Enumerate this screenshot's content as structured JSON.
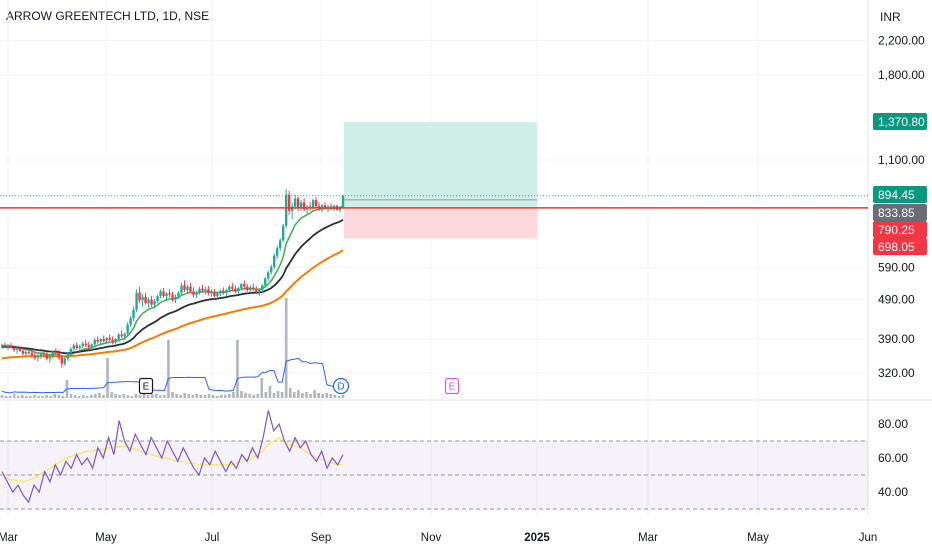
{
  "header": {
    "title": "ARROW GREENTECH LTD, 1D, NSE",
    "currency": "INR"
  },
  "colors": {
    "up": "#22ab94",
    "down": "#f23645",
    "ema_fast": "#4caf50",
    "ema_mid": "#2a2e39",
    "ema_slow": "#f57c00",
    "rsi": "#7e57c2",
    "rsi_ma": "#fbe74d",
    "vol_ma": "#2962ff",
    "target_zone": "#cfeee7",
    "stop_zone": "#fcd8dc",
    "support_line": "#e53935"
  },
  "chart_data": {
    "type": "candlestick",
    "title": "ARROW GREENTECH LTD, 1D, NSE",
    "price_axis": {
      "scale": "log",
      "ticks": [
        "2,200.00",
        "1,800.00",
        "1,100.00",
        "590.00",
        "490.00",
        "390.00",
        "320.00"
      ],
      "tick_values": [
        2200,
        1800,
        1100,
        590,
        490,
        390,
        320
      ]
    },
    "rsi_axis": {
      "ticks": [
        "80.00",
        "60.00",
        "40.00"
      ],
      "tick_values": [
        80,
        60,
        40
      ],
      "bands": [
        70,
        50,
        30
      ]
    },
    "time_axis": {
      "ticks": [
        "Mar",
        "May",
        "Jul",
        "Sep",
        "Nov",
        "2025",
        "Mar",
        "May",
        "Jun"
      ]
    },
    "price_tags": [
      {
        "label": "1,370.80",
        "value": 1370.8,
        "style": "outline-green"
      },
      {
        "label": "894.45",
        "value": 894.45,
        "style": "green"
      },
      {
        "label": "833.85",
        "value": 833.85,
        "style": "gray"
      },
      {
        "label": "790.25",
        "value": 790.25,
        "style": "red"
      },
      {
        "label": "698.05",
        "value": 698.05,
        "style": "red"
      }
    ],
    "support_level": 833.85,
    "position": {
      "entry": 833.85,
      "target": 1370.8,
      "stop": 698.05
    },
    "events": [
      {
        "label": "E",
        "kind": "earnings"
      },
      {
        "label": "D",
        "kind": "dividend"
      },
      {
        "label": "E",
        "kind": "earnings-upcoming"
      }
    ],
    "candles": [
      [
        373,
        380,
        368,
        376
      ],
      [
        376,
        382,
        370,
        372
      ],
      [
        372,
        379,
        366,
        375
      ],
      [
        375,
        381,
        369,
        370
      ],
      [
        370,
        376,
        362,
        366
      ],
      [
        366,
        373,
        358,
        369
      ],
      [
        369,
        374,
        362,
        364
      ],
      [
        364,
        370,
        355,
        358
      ],
      [
        358,
        366,
        352,
        362
      ],
      [
        362,
        368,
        356,
        360
      ],
      [
        360,
        366,
        350,
        355
      ],
      [
        355,
        362,
        345,
        350
      ],
      [
        350,
        358,
        342,
        352
      ],
      [
        352,
        360,
        348,
        358
      ],
      [
        358,
        364,
        352,
        356
      ],
      [
        356,
        362,
        345,
        348
      ],
      [
        348,
        356,
        340,
        352
      ],
      [
        352,
        364,
        348,
        362
      ],
      [
        362,
        370,
        356,
        360
      ],
      [
        360,
        366,
        346,
        350
      ],
      [
        350,
        356,
        330,
        338
      ],
      [
        338,
        352,
        334,
        348
      ],
      [
        348,
        362,
        344,
        360
      ],
      [
        360,
        372,
        356,
        368
      ],
      [
        368,
        380,
        364,
        376
      ],
      [
        376,
        382,
        366,
        370
      ],
      [
        370,
        378,
        362,
        374
      ],
      [
        374,
        384,
        370,
        380
      ],
      [
        380,
        388,
        372,
        376
      ],
      [
        376,
        384,
        366,
        372
      ],
      [
        372,
        380,
        364,
        378
      ],
      [
        378,
        392,
        374,
        388
      ],
      [
        388,
        396,
        380,
        384
      ],
      [
        384,
        392,
        376,
        390
      ],
      [
        390,
        398,
        382,
        386
      ],
      [
        386,
        394,
        378,
        392
      ],
      [
        392,
        400,
        386,
        388
      ],
      [
        388,
        396,
        378,
        384
      ],
      [
        384,
        392,
        376,
        390
      ],
      [
        390,
        404,
        386,
        400
      ],
      [
        400,
        410,
        392,
        396
      ],
      [
        396,
        404,
        388,
        402
      ],
      [
        402,
        430,
        398,
        424
      ],
      [
        424,
        446,
        418,
        440
      ],
      [
        440,
        470,
        432,
        462
      ],
      [
        462,
        520,
        456,
        510
      ],
      [
        510,
        528,
        480,
        488
      ],
      [
        488,
        506,
        470,
        498
      ],
      [
        498,
        510,
        476,
        480
      ],
      [
        480,
        496,
        468,
        490
      ],
      [
        490,
        500,
        470,
        476
      ],
      [
        476,
        492,
        466,
        486
      ],
      [
        486,
        504,
        480,
        500
      ],
      [
        500,
        520,
        494,
        514
      ],
      [
        514,
        524,
        496,
        500
      ],
      [
        500,
        512,
        486,
        508
      ],
      [
        508,
        520,
        496,
        504
      ],
      [
        504,
        512,
        484,
        490
      ],
      [
        490,
        504,
        480,
        498
      ],
      [
        498,
        514,
        492,
        510
      ],
      [
        510,
        540,
        504,
        532
      ],
      [
        532,
        548,
        512,
        518
      ],
      [
        518,
        534,
        506,
        528
      ],
      [
        528,
        540,
        508,
        514
      ],
      [
        514,
        526,
        496,
        504
      ],
      [
        504,
        516,
        494,
        510
      ],
      [
        510,
        528,
        504,
        522
      ],
      [
        522,
        534,
        510,
        516
      ],
      [
        516,
        528,
        504,
        520
      ],
      [
        520,
        530,
        502,
        508
      ],
      [
        508,
        520,
        498,
        512
      ],
      [
        512,
        522,
        496,
        500
      ],
      [
        500,
        514,
        492,
        508
      ],
      [
        508,
        520,
        500,
        516
      ],
      [
        516,
        526,
        504,
        510
      ],
      [
        510,
        522,
        500,
        518
      ],
      [
        518,
        534,
        512,
        528
      ],
      [
        528,
        540,
        516,
        522
      ],
      [
        522,
        532,
        508,
        514
      ],
      [
        514,
        528,
        506,
        524
      ],
      [
        524,
        540,
        518,
        536
      ],
      [
        536,
        548,
        520,
        528
      ],
      [
        528,
        536,
        512,
        518
      ],
      [
        518,
        532,
        510,
        526
      ],
      [
        526,
        538,
        516,
        520
      ],
      [
        520,
        530,
        506,
        512
      ],
      [
        512,
        524,
        500,
        518
      ],
      [
        518,
        536,
        512,
        532
      ],
      [
        532,
        560,
        526,
        554
      ],
      [
        554,
        580,
        546,
        574
      ],
      [
        574,
        600,
        566,
        592
      ],
      [
        592,
        640,
        584,
        632
      ],
      [
        632,
        670,
        620,
        660
      ],
      [
        660,
        700,
        650,
        690
      ],
      [
        690,
        760,
        684,
        752
      ],
      [
        752,
        930,
        740,
        900
      ],
      [
        900,
        920,
        800,
        820
      ],
      [
        820,
        860,
        780,
        840
      ],
      [
        840,
        900,
        826,
        880
      ],
      [
        880,
        890,
        820,
        832
      ],
      [
        832,
        872,
        820,
        860
      ],
      [
        860,
        880,
        818,
        826
      ],
      [
        826,
        848,
        806,
        840
      ],
      [
        840,
        862,
        820,
        834
      ],
      [
        834,
        880,
        826,
        872
      ],
      [
        872,
        886,
        830,
        842
      ],
      [
        842,
        860,
        820,
        836
      ],
      [
        836,
        852,
        814,
        846
      ],
      [
        846,
        860,
        826,
        832
      ],
      [
        832,
        848,
        814,
        840
      ],
      [
        840,
        856,
        822,
        828
      ],
      [
        828,
        850,
        818,
        844
      ],
      [
        844,
        848,
        820,
        824
      ],
      [
        824,
        842,
        812,
        836
      ],
      [
        836,
        900,
        830,
        894.45
      ]
    ],
    "rsi_values": [
      52,
      46,
      40,
      44,
      38,
      34,
      44,
      40,
      52,
      46,
      56,
      50,
      58,
      54,
      62,
      56,
      60,
      54,
      66,
      60,
      72,
      62,
      82,
      70,
      64,
      74,
      68,
      62,
      72,
      66,
      60,
      70,
      64,
      58,
      66,
      60,
      54,
      50,
      60,
      56,
      64,
      58,
      52,
      58,
      54,
      62,
      58,
      66,
      60,
      72,
      88,
      76,
      80,
      70,
      64,
      72,
      66,
      70,
      62,
      58,
      64,
      54,
      60,
      56,
      62
    ],
    "rsi_ma": [
      50,
      48,
      47,
      47,
      46,
      47,
      48,
      50,
      52,
      54,
      56,
      58,
      60,
      61,
      62,
      63,
      64,
      64,
      65,
      65,
      66,
      66,
      67,
      67,
      66,
      65,
      64,
      63,
      62,
      61,
      60,
      60,
      59,
      58,
      58,
      57,
      57,
      56,
      56,
      56,
      56,
      56,
      56,
      56,
      57,
      58,
      59,
      60,
      62,
      64,
      68,
      70,
      72,
      70,
      68,
      67,
      66,
      64,
      62,
      60,
      59,
      58,
      57,
      56,
      56
    ],
    "volume": [
      3,
      2,
      2,
      4,
      2,
      3,
      2,
      2,
      3,
      2,
      2,
      3,
      2,
      4,
      3,
      2,
      18,
      4,
      3,
      2,
      3,
      2,
      3,
      4,
      5,
      3,
      40,
      6,
      4,
      3,
      4,
      3,
      2,
      4,
      3,
      5,
      3,
      4,
      4,
      3,
      3,
      58,
      6,
      4,
      3,
      5,
      4,
      3,
      4,
      3,
      3,
      4,
      3,
      2,
      3,
      3,
      4,
      6,
      58,
      7,
      5,
      4,
      3,
      4,
      20,
      6,
      12,
      5,
      7,
      6,
      100,
      10,
      6,
      8,
      5,
      6,
      4,
      8,
      5,
      4,
      5,
      4,
      3,
      2,
      3
    ]
  }
}
